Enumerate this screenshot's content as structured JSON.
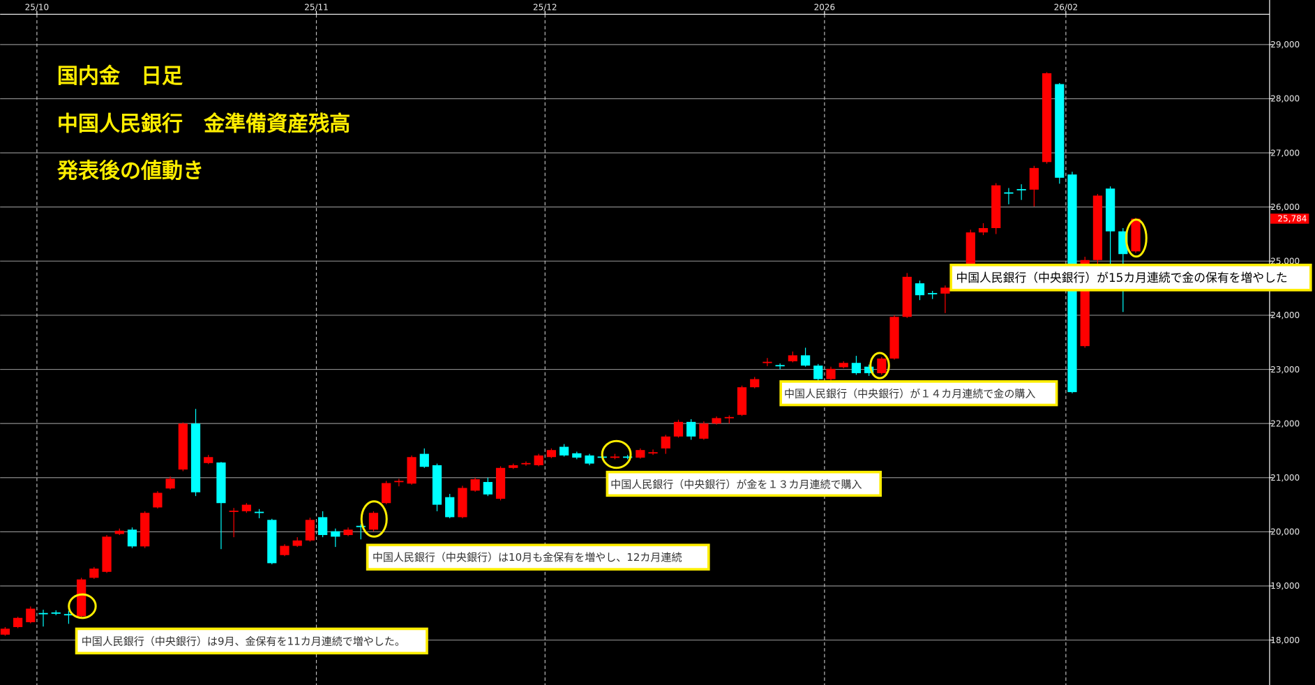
{
  "chart_data": {
    "type": "candlestick",
    "title_lines": [
      "国内金　日足",
      "中国人民銀行　金準備資産残高",
      "発表後の値動き"
    ],
    "annotations": [
      "中国人民銀行（中央銀行）は9月、金保有を11カ月連続で増やした。",
      "中国人民銀行（中央銀行）は10月も金保有を増やし、12カ月連続",
      "中国人民銀行（中央銀行）が金を１３カ月連続で購入",
      "中国人民銀行（中央銀行）が１４カ月連続で金の購入",
      "中国人民銀行（中央銀行）が15カ月連続で金の保有を増やした"
    ],
    "categories": [
      null,
      null,
      null,
      "25/10",
      null,
      null,
      null,
      null,
      null,
      null,
      null,
      null,
      null,
      null,
      null,
      null,
      null,
      null,
      null,
      null,
      null,
      null,
      null,
      null,
      null,
      "25/11",
      null,
      null,
      null,
      null,
      null,
      null,
      null,
      null,
      null,
      null,
      null,
      null,
      null,
      null,
      null,
      null,
      null,
      "25/12",
      null,
      null,
      null,
      null,
      null,
      null,
      null,
      null,
      null,
      null,
      null,
      null,
      null,
      null,
      null,
      null,
      null,
      null,
      null,
      null,
      null,
      "2026",
      null,
      null,
      null,
      null,
      null,
      null,
      null,
      null,
      null,
      null,
      null,
      null,
      null,
      null,
      null,
      null,
      null,
      null,
      "26/02",
      null,
      null,
      null,
      null,
      null
    ],
    "open": [
      18100,
      18240,
      18330,
      18500,
      18510,
      18480,
      18440,
      19150,
      19260,
      19960,
      20040,
      19730,
      20450,
      20800,
      21150,
      22000,
      21270,
      21280,
      20370,
      20380,
      20370,
      20220,
      19570,
      19740,
      19840,
      20270,
      20010,
      19940,
      20110,
      20040,
      20530,
      20920,
      20890,
      21440,
      21230,
      20640,
      20270,
      20760,
      20920,
      20610,
      21180,
      21250,
      21230,
      21380,
      21570,
      21450,
      21410,
      21390,
      21370,
      21390,
      21370,
      21450,
      21540,
      21760,
      22030,
      21720,
      22000,
      22100,
      22160,
      22670,
      23120,
      23080,
      23150,
      23260,
      23070,
      22820,
      23040,
      23120,
      23050,
      22930,
      23200,
      23970,
      24590,
      24410,
      24400,
      24560,
      24930,
      25530,
      25610,
      26270,
      26330,
      26320,
      26830,
      28270,
      26600,
      23430,
      25020,
      26340,
      25550,
      25180
    ],
    "high": [
      18240,
      18430,
      18620,
      18560,
      18550,
      18540,
      19150,
      19350,
      19940,
      20060,
      20080,
      20380,
      20750,
      21020,
      22020,
      22270,
      21420,
      21290,
      20440,
      20530,
      20420,
      20240,
      19770,
      19900,
      20260,
      20380,
      20060,
      20080,
      20140,
      20380,
      20940,
      20980,
      21410,
      21540,
      21260,
      20700,
      20850,
      21000,
      21000,
      21210,
      21260,
      21300,
      21440,
      21540,
      21620,
      21480,
      21440,
      21430,
      21440,
      21420,
      21540,
      21520,
      21790,
      22070,
      22080,
      22040,
      22130,
      22150,
      22700,
      22860,
      23210,
      23110,
      23330,
      23400,
      23100,
      23050,
      23150,
      23250,
      23090,
      23230,
      24000,
      24780,
      24640,
      24450,
      24550,
      24940,
      25580,
      25700,
      26440,
      26350,
      26420,
      26760,
      28490,
      28290,
      26650,
      25080,
      26240,
      26380,
      25610,
      25800
    ],
    "low": [
      18080,
      18220,
      18310,
      18250,
      18460,
      18300,
      18420,
      19130,
      19240,
      19940,
      19700,
      19700,
      20430,
      20780,
      21120,
      20660,
      21250,
      19680,
      19900,
      20350,
      20250,
      19400,
      19550,
      19720,
      19820,
      19900,
      19720,
      19920,
      19860,
      20010,
      20510,
      20840,
      20870,
      21180,
      20380,
      20250,
      20250,
      20740,
      20660,
      20580,
      21160,
      21220,
      21210,
      21360,
      21390,
      21340,
      21230,
      21340,
      21340,
      21340,
      21350,
      21420,
      21440,
      21740,
      21700,
      21700,
      21980,
      22000,
      22140,
      22650,
      23060,
      23000,
      23130,
      23050,
      22630,
      22800,
      23020,
      22900,
      22880,
      22900,
      23180,
      23950,
      24280,
      24300,
      24040,
      24540,
      24900,
      25480,
      25500,
      26050,
      26130,
      26010,
      26800,
      26430,
      22560,
      23400,
      24950,
      24900,
      24060,
      25150
    ],
    "close": [
      18210,
      18410,
      18580,
      18480,
      18490,
      18460,
      19120,
      19320,
      19910,
      20020,
      19730,
      20350,
      20720,
      20980,
      22000,
      20730,
      21380,
      20530,
      20390,
      20500,
      20350,
      19420,
      19740,
      19840,
      20220,
      19940,
      19910,
      20040,
      20090,
      20350,
      20900,
      20940,
      21380,
      21200,
      20500,
      20270,
      20810,
      20970,
      20690,
      21180,
      21230,
      21270,
      21410,
      21510,
      21410,
      21370,
      21260,
      21370,
      21390,
      21370,
      21510,
      21470,
      21760,
      22030,
      21760,
      22000,
      22100,
      22120,
      22670,
      22820,
      23140,
      23060,
      23260,
      23070,
      22820,
      23010,
      23120,
      22930,
      22930,
      23200,
      23970,
      24710,
      24370,
      24390,
      24510,
      24900,
      25530,
      25610,
      26400,
      26250,
      26310,
      26720,
      28470,
      26540,
      22580,
      25020,
      26210,
      25550,
      25130,
      25784
    ],
    "up_color": "#ff0000",
    "down_color": "#00ffff",
    "last_label": {
      "value": 25784,
      "label": "25,784"
    },
    "ylim": [
      17170,
      29560
    ],
    "yticks": [
      {
        "value": 18000,
        "label": "18,000"
      },
      {
        "value": 19000,
        "label": "19,000"
      },
      {
        "value": 20000,
        "label": "20,000"
      },
      {
        "value": 21000,
        "label": "21,000"
      },
      {
        "value": 22000,
        "label": "22,000"
      },
      {
        "value": 23000,
        "label": "23,000"
      },
      {
        "value": 24000,
        "label": "24,000"
      },
      {
        "value": 25000,
        "label": "25,000"
      },
      {
        "value": 26000,
        "label": "26,000"
      },
      {
        "value": 27000,
        "label": "27,000"
      },
      {
        "value": 28000,
        "label": "28,000"
      },
      {
        "value": 29000,
        "label": "29,000"
      }
    ],
    "grid": true
  }
}
